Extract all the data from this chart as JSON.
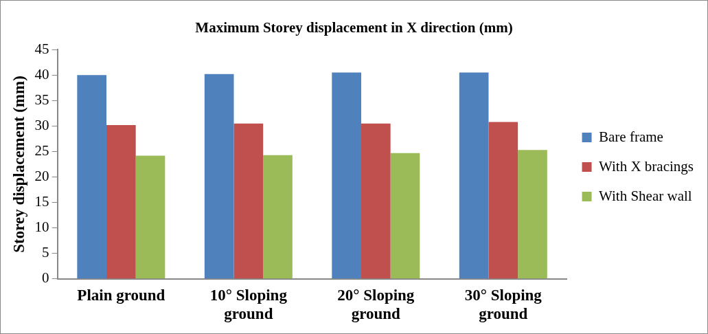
{
  "chart_data": {
    "type": "bar",
    "title": "Maximum Storey displacement in X direction (mm)",
    "ylabel": "Storey displacement (mm)",
    "categories": [
      "Plain ground",
      "10° Sloping ground",
      "20° Sloping ground",
      "30° Sloping ground"
    ],
    "series": [
      {
        "name": "Bare frame",
        "color": "#4f81bd",
        "values": [
          40,
          40.2,
          40.5,
          40.5
        ]
      },
      {
        "name": "With X bracings",
        "color": "#c0504d",
        "values": [
          30.2,
          30.5,
          30.5,
          30.8
        ]
      },
      {
        "name": "With Shear wall",
        "color": "#9bbb59",
        "values": [
          24.2,
          24.3,
          24.7,
          25.3
        ]
      }
    ],
    "ylim": [
      0,
      45
    ],
    "yticks": [
      0,
      5,
      10,
      15,
      20,
      25,
      30,
      35,
      40,
      45
    ],
    "grid": false,
    "legend": "right"
  }
}
